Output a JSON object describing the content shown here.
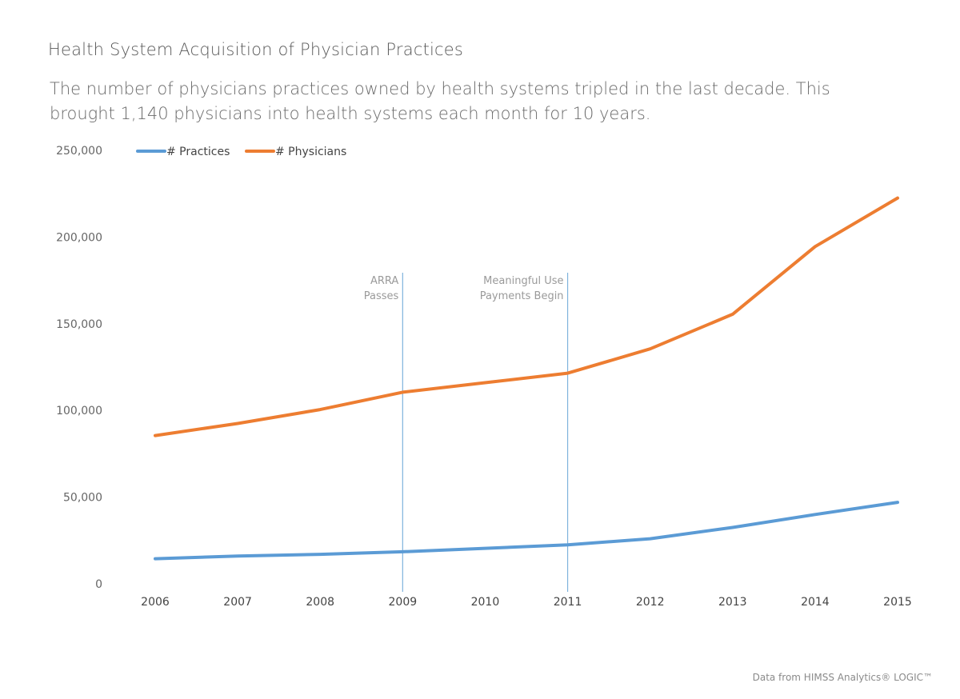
{
  "header": {
    "title": "Health System Acquisition of Physician Practices",
    "subtitle": "The number of physicians practices owned by health systems tripled in the last decade. This brought 1,140 physicians into health systems each month for 10 years."
  },
  "source": "Data from HIMSS Analytics® LOGIC™",
  "chart_data": {
    "type": "line",
    "x": [
      "2006",
      "2007",
      "2008",
      "2009",
      "2010",
      "2011",
      "2012",
      "2013",
      "2014",
      "2015"
    ],
    "ylim": [
      0,
      250000
    ],
    "yticks": [
      0,
      50000,
      100000,
      150000,
      200000,
      250000
    ],
    "ytick_labels": [
      "0",
      "50,000",
      "100,000",
      "150,000",
      "200,000",
      "250,000"
    ],
    "grid": false,
    "legend_position": "top-left",
    "series": [
      {
        "name": "# Practices",
        "color": "#5b9bd5",
        "values": [
          14500,
          16000,
          17000,
          18500,
          20500,
          22500,
          26000,
          32500,
          40000,
          47000
        ]
      },
      {
        "name": "# Physicians",
        "color": "#ed7d31",
        "values": [
          85500,
          92500,
          100500,
          110500,
          116000,
          121500,
          135500,
          155500,
          194500,
          222500
        ]
      }
    ],
    "annotations": [
      {
        "x": "2009",
        "line1": "ARRA",
        "line2": "Passes"
      },
      {
        "x": "2011",
        "line1": "Meaningful Use",
        "line2": "Payments Begin"
      }
    ],
    "annotation_color": "#7fb3dc"
  }
}
